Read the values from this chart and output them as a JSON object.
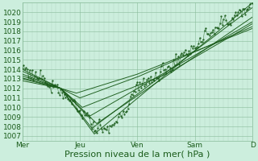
{
  "bg_color": "#cceedd",
  "grid_major_color": "#88bb99",
  "grid_minor_color": "#aaccbb",
  "line_color": "#1a5c1a",
  "xlabel": "Pression niveau de la mer( hPa )",
  "xlabel_fontsize": 8,
  "tick_label_color": "#1a5c1a",
  "tick_fontsize": 6.5,
  "ylim": [
    1006.5,
    1021.0
  ],
  "yticks": [
    1007,
    1008,
    1009,
    1010,
    1011,
    1012,
    1013,
    1014,
    1015,
    1016,
    1017,
    1018,
    1019,
    1020
  ],
  "xtick_labels": [
    "Mer",
    "Jeu",
    "Ven",
    "Sam",
    "D"
  ],
  "xtick_positions": [
    0,
    48,
    96,
    144,
    192
  ],
  "xlim": [
    0,
    192
  ]
}
